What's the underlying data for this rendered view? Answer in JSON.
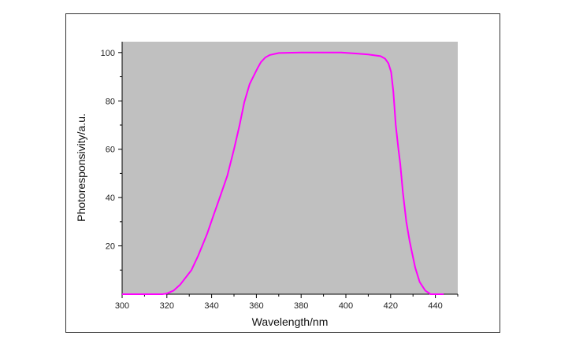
{
  "chart_data": {
    "type": "line",
    "title": "",
    "xlabel": "Wavelength/nm",
    "ylabel": "Photoresponsivity/a.u.",
    "xlim": [
      300,
      450
    ],
    "ylim": [
      0,
      104.5
    ],
    "xticks": [
      300,
      320,
      340,
      360,
      380,
      400,
      420,
      440
    ],
    "yticks": [
      20,
      40,
      60,
      80,
      100
    ],
    "grid": false,
    "plot_background": "#c0c0c0",
    "line_color": "#ff00ff",
    "series": [
      {
        "x": [
          300,
          318,
          320,
          323,
          326,
          331,
          334,
          338,
          341,
          344,
          347,
          350,
          352.5,
          354.6,
          357,
          360.5,
          362,
          364,
          366,
          370,
          380,
          398,
          405,
          410,
          415.5,
          417.5,
          419,
          420.2,
          421.2,
          422.3,
          423.5,
          424.3,
          425.5,
          427,
          428.5,
          429.6,
          431,
          433,
          435.5,
          437.9,
          443.7
        ],
        "y": [
          0,
          0,
          0.3,
          1.5,
          4,
          10,
          16,
          25,
          33,
          41,
          49,
          60,
          70,
          79.5,
          87,
          93.5,
          96,
          98,
          99,
          99.8,
          100,
          100,
          99.6,
          99.2,
          98.5,
          97.5,
          95.5,
          92,
          84,
          70,
          60,
          54,
          42,
          30,
          22,
          17,
          11,
          5,
          1.5,
          0,
          0
        ]
      }
    ]
  }
}
